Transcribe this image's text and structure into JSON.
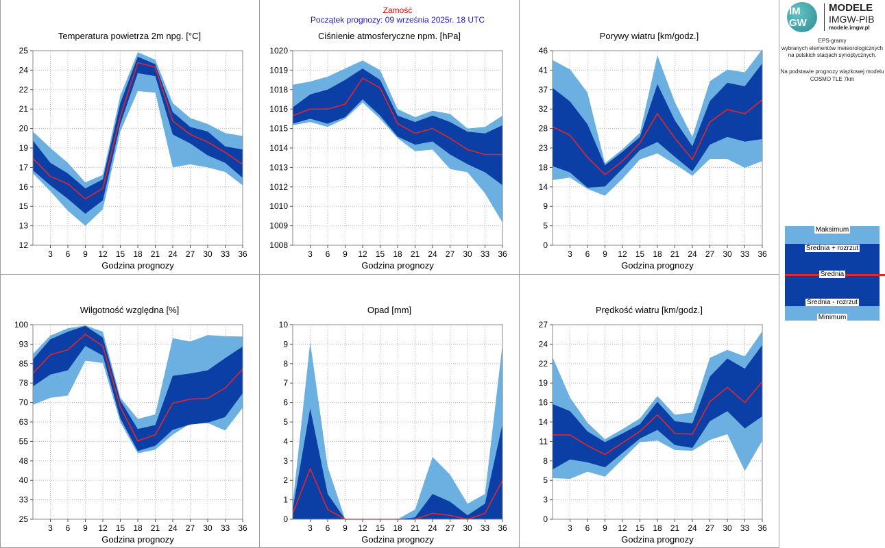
{
  "header": {
    "station": "Zamość",
    "forecast_start": "Początek prognozy: 09 września 2025r. 18 UTC"
  },
  "logo": {
    "mark_top": "IM",
    "mark_bottom": "GW",
    "brand": "MODELE",
    "org": "IMGW-PIB",
    "url": "modele.imgw.pl"
  },
  "description": {
    "lines": [
      "EPS-gramy",
      "wybranych elementów meteorologicznych",
      "na polskich stacjach  synoptycznych."
    ],
    "model_lines": [
      "Na podstawie prognozy wiązkowej modelu",
      "COSMO TLE 7km"
    ]
  },
  "legend": {
    "max": "Maksimum",
    "mean_plus": "Średnia + rozrzut",
    "mean": "Średnia",
    "mean_minus": "Średnia - rozrzut",
    "min": "Minimum"
  },
  "colors": {
    "outer_band": "#6cb0e2",
    "inner_band": "#0b3fa6",
    "mean_line": "#e3262a",
    "station_title": "#e00000",
    "forecast_title": "#1a1ac8"
  },
  "chart_data": [
    {
      "type": "area",
      "title": "Temperatura powietrza 2m npg. [°C]",
      "xlabel": "Godzina prognozy",
      "x": [
        0,
        3,
        6,
        9,
        12,
        15,
        18,
        21,
        24,
        27,
        30,
        33,
        36
      ],
      "xticks": [
        "3",
        "6",
        "9",
        "12",
        "15",
        "18",
        "21",
        "24",
        "27",
        "30",
        "33",
        "36"
      ],
      "yticks": [
        "12",
        "13",
        "15",
        "16",
        "17",
        "19",
        "20",
        "21",
        "22",
        "24",
        "25"
      ],
      "ylim": [
        12,
        25
      ],
      "series": [
        {
          "name": "Maksimum",
          "values": [
            19.6,
            18.5,
            17.5,
            16.2,
            16.7,
            22.0,
            24.9,
            24.4,
            21.5,
            20.5,
            20.1,
            19.5,
            19.3
          ]
        },
        {
          "name": "Średnia + rozrzut",
          "values": [
            19.0,
            17.5,
            16.8,
            15.8,
            16.4,
            21.5,
            24.6,
            24.1,
            20.9,
            19.9,
            19.6,
            18.6,
            18.4
          ]
        },
        {
          "name": "Średnia",
          "values": [
            17.8,
            16.6,
            16.1,
            15.1,
            15.8,
            20.6,
            24.2,
            23.9,
            20.3,
            19.4,
            18.9,
            18.2,
            17.4
          ]
        },
        {
          "name": "Średnia - rozrzut",
          "values": [
            17.0,
            16.0,
            15.1,
            14.1,
            15.0,
            20.1,
            23.5,
            23.3,
            19.4,
            18.8,
            18.0,
            17.5,
            16.5
          ]
        },
        {
          "name": "Minimum",
          "values": [
            16.8,
            15.6,
            14.3,
            13.3,
            14.4,
            19.6,
            22.3,
            22.2,
            17.2,
            17.4,
            17.2,
            16.9,
            16.0
          ]
        }
      ]
    },
    {
      "type": "area",
      "title": "Ciśnienie atmosferyczne npm. [hPa]",
      "xlabel": "Godzina prognozy",
      "x": [
        0,
        3,
        6,
        9,
        12,
        15,
        18,
        21,
        24,
        27,
        30,
        33,
        36
      ],
      "xticks": [
        "3",
        "6",
        "9",
        "12",
        "15",
        "18",
        "21",
        "24",
        "27",
        "30",
        "33",
        "36"
      ],
      "yticks": [
        "1008",
        "1009",
        "1010",
        "1012",
        "1013",
        "1014",
        "1015",
        "1016",
        "1018",
        "1019",
        "1020"
      ],
      "ylim": [
        1008,
        1020
      ],
      "series": [
        {
          "name": "Maksimum",
          "values": [
            1017.9,
            1018.1,
            1018.4,
            1018.9,
            1019.4,
            1018.8,
            1016.4,
            1015.9,
            1016.3,
            1016.1,
            1015.2,
            1015.3,
            1016.0
          ]
        },
        {
          "name": "Średnia + rozrzut",
          "values": [
            1016.5,
            1017.3,
            1017.6,
            1018.2,
            1018.9,
            1018.2,
            1016.0,
            1015.6,
            1016.0,
            1015.6,
            1015.0,
            1014.9,
            1015.4
          ]
        },
        {
          "name": "Średnia",
          "values": [
            1016.0,
            1016.4,
            1016.4,
            1016.7,
            1018.3,
            1017.7,
            1015.5,
            1014.9,
            1015.2,
            1014.6,
            1013.9,
            1013.6,
            1013.6
          ]
        },
        {
          "name": "Średnia - rozrzut",
          "values": [
            1015.5,
            1015.8,
            1015.5,
            1015.9,
            1017.0,
            1016.0,
            1014.7,
            1014.2,
            1014.4,
            1013.6,
            1013.0,
            1012.5,
            1011.7
          ]
        },
        {
          "name": "Minimum",
          "values": [
            1015.4,
            1015.6,
            1015.3,
            1015.8,
            1016.8,
            1015.8,
            1014.6,
            1013.8,
            1013.9,
            1012.7,
            1012.5,
            1011.2,
            1009.4
          ]
        }
      ]
    },
    {
      "type": "area",
      "title": "Porywy wiatru [km/godz.]",
      "xlabel": "Godzina prognozy",
      "x": [
        0,
        3,
        6,
        9,
        12,
        15,
        18,
        21,
        24,
        27,
        30,
        33,
        36
      ],
      "xticks": [
        "3",
        "6",
        "9",
        "12",
        "15",
        "18",
        "21",
        "24",
        "27",
        "30",
        "33",
        "36"
      ],
      "yticks": [
        "0",
        "5",
        "9",
        "14",
        "18",
        "23",
        "28",
        "32",
        "37",
        "41",
        "46"
      ],
      "ylim": [
        0,
        46
      ],
      "series": [
        {
          "name": "Maksimum",
          "values": [
            43.8,
            41.6,
            36.1,
            19.4,
            22.7,
            26.6,
            44.9,
            33.8,
            25.6,
            38.8,
            41.5,
            40.9,
            46.3
          ]
        },
        {
          "name": "Średnia + rozrzut",
          "values": [
            37.2,
            34.0,
            28.6,
            18.9,
            22.1,
            25.6,
            38.1,
            29.5,
            23.4,
            34.1,
            38.4,
            37.6,
            43.0
          ]
        },
        {
          "name": "Średnia",
          "values": [
            28.0,
            26.0,
            20.8,
            16.7,
            19.9,
            24.2,
            31.1,
            25.3,
            20.3,
            29.1,
            32.1,
            31.1,
            34.4
          ]
        },
        {
          "name": "Średnia - rozrzut",
          "values": [
            18.7,
            17.2,
            13.6,
            13.9,
            18.1,
            22.5,
            24.4,
            20.9,
            17.5,
            23.8,
            25.6,
            24.5,
            25.1
          ]
        },
        {
          "name": "Minimum",
          "values": [
            15.4,
            16.0,
            13.3,
            11.7,
            15.7,
            20.3,
            21.7,
            19.2,
            16.4,
            20.4,
            20.4,
            18.3,
            19.9
          ]
        }
      ]
    },
    {
      "type": "area",
      "title": "Wilgotność względna [%]",
      "xlabel": "Godzina prognozy",
      "x": [
        0,
        3,
        6,
        9,
        12,
        15,
        18,
        21,
        24,
        27,
        30,
        33,
        36
      ],
      "xticks": [
        "3",
        "6",
        "9",
        "12",
        "15",
        "18",
        "21",
        "24",
        "27",
        "30",
        "33",
        "36"
      ],
      "yticks": [
        "25",
        "33",
        "40",
        "48",
        "55",
        "63",
        "70",
        "78",
        "85",
        "93",
        "100"
      ],
      "ylim": [
        25,
        100
      ],
      "series": [
        {
          "name": "Maksimum",
          "values": [
            88.7,
            95.8,
            98.6,
            99.7,
            97.3,
            71.9,
            63.7,
            65.4,
            94.8,
            93.5,
            96.0,
            95.6,
            95.4
          ]
        },
        {
          "name": "Średnia + rozrzut",
          "values": [
            86.6,
            94.4,
            97.3,
            99.5,
            95.1,
            70.8,
            59.8,
            61.3,
            80.3,
            81.2,
            82.4,
            87.1,
            91.6
          ]
        },
        {
          "name": "Średnia",
          "values": [
            81.3,
            88.4,
            90.3,
            96.3,
            91.7,
            68.3,
            55.2,
            57.6,
            69.7,
            71.3,
            71.6,
            75.6,
            82.9
          ]
        },
        {
          "name": "Średnia - rozrzut",
          "values": [
            76.2,
            80.8,
            82.4,
            91.8,
            88.1,
            63.9,
            51.3,
            53.3,
            59.5,
            61.5,
            62.2,
            64.4,
            73.6
          ]
        },
        {
          "name": "Minimum",
          "values": [
            69.1,
            71.8,
            72.7,
            86.1,
            85.2,
            62.4,
            50.4,
            51.8,
            57.6,
            61.9,
            62.1,
            59.2,
            68.0
          ]
        }
      ]
    },
    {
      "type": "area",
      "title": "Opad [mm]",
      "xlabel": "Godzina prognozy",
      "x": [
        0,
        3,
        6,
        9,
        12,
        15,
        18,
        21,
        24,
        27,
        30,
        33,
        36
      ],
      "xticks": [
        "3",
        "6",
        "9",
        "12",
        "15",
        "18",
        "21",
        "24",
        "27",
        "30",
        "33",
        "36"
      ],
      "yticks": [
        "0",
        "1",
        "2",
        "3",
        "4",
        "5",
        "6",
        "7",
        "8",
        "9",
        "10"
      ],
      "ylim": [
        0,
        10
      ],
      "series": [
        {
          "name": "Maksimum",
          "values": [
            0.8,
            9.1,
            2.7,
            0.0,
            0.0,
            0.0,
            0.0,
            0.5,
            3.2,
            2.3,
            0.8,
            1.3,
            9.0
          ]
        },
        {
          "name": "Średnia + rozrzut",
          "values": [
            0.5,
            5.7,
            1.3,
            0.0,
            0.0,
            0.0,
            0.0,
            0.1,
            1.3,
            0.9,
            0.2,
            0.8,
            4.9
          ]
        },
        {
          "name": "Średnia",
          "values": [
            0.3,
            2.6,
            0.5,
            0.0,
            0.0,
            0.0,
            0.0,
            0.0,
            0.3,
            0.2,
            0.0,
            0.3,
            2.0
          ]
        },
        {
          "name": "Średnia - rozrzut",
          "values": [
            0.0,
            0.0,
            0.0,
            0.0,
            0.0,
            0.0,
            0.0,
            0.0,
            0.0,
            0.0,
            0.0,
            0.0,
            0.0
          ]
        },
        {
          "name": "Minimum",
          "values": [
            0.0,
            0.0,
            0.0,
            0.0,
            0.0,
            0.0,
            0.0,
            0.0,
            0.0,
            0.0,
            0.0,
            0.0,
            0.0
          ]
        }
      ]
    },
    {
      "type": "area",
      "title": "Prędkość wiatru [km/godz.]",
      "xlabel": "Godzina prognozy",
      "x": [
        0,
        3,
        6,
        9,
        12,
        15,
        18,
        21,
        24,
        27,
        30,
        33,
        36
      ],
      "xticks": [
        "3",
        "6",
        "9",
        "12",
        "15",
        "18",
        "21",
        "24",
        "27",
        "30",
        "33",
        "36"
      ],
      "yticks": [
        "0",
        "3",
        "5",
        "8",
        "11",
        "14",
        "16",
        "19",
        "22",
        "24",
        "27"
      ],
      "ylim": [
        0,
        27
      ],
      "series": [
        {
          "name": "Maksimum",
          "values": [
            22.5,
            16.9,
            13.4,
            11.1,
            12.5,
            14.0,
            17.1,
            14.5,
            14.8,
            22.4,
            23.5,
            22.6,
            26.1
          ]
        },
        {
          "name": "Średnia + rozrzut",
          "values": [
            16.0,
            15.0,
            12.2,
            10.7,
            11.9,
            13.2,
            16.3,
            13.6,
            13.3,
            19.8,
            22.3,
            20.9,
            24.2
          ]
        },
        {
          "name": "Średnia",
          "values": [
            11.7,
            11.7,
            10.2,
            9.0,
            10.6,
            12.2,
            14.5,
            11.9,
            11.8,
            16.3,
            18.3,
            16.2,
            19.1
          ]
        },
        {
          "name": "Średnia - rozrzut",
          "values": [
            6.9,
            8.3,
            7.9,
            7.2,
            9.2,
            11.2,
            12.4,
            10.3,
            9.9,
            13.6,
            15.0,
            12.6,
            14.3
          ]
        },
        {
          "name": "Minimum",
          "values": [
            5.7,
            5.6,
            6.6,
            5.9,
            8.3,
            10.7,
            10.9,
            9.6,
            9.5,
            11.0,
            11.8,
            6.7,
            10.9
          ]
        }
      ]
    }
  ]
}
